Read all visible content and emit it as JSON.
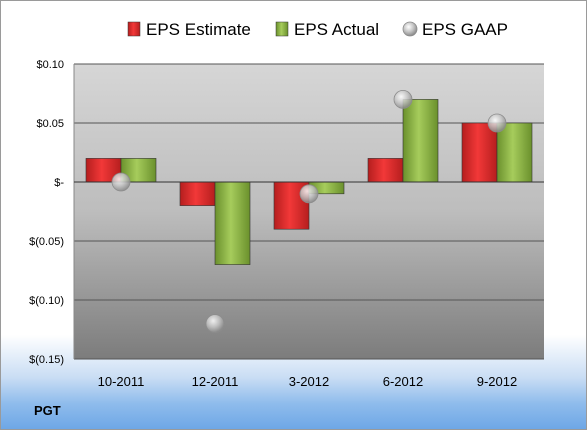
{
  "ticker": "PGT",
  "chart_data": {
    "type": "bar",
    "categories": [
      "10-2011",
      "12-2011",
      "3-2012",
      "6-2012",
      "9-2012"
    ],
    "series": [
      {
        "name": "EPS Estimate",
        "kind": "bar",
        "color": "#cc2222",
        "values": [
          0.02,
          -0.02,
          -0.04,
          0.02,
          0.05
        ]
      },
      {
        "name": "EPS Actual",
        "kind": "bar",
        "color": "#7ea63a",
        "values": [
          0.02,
          -0.07,
          -0.01,
          0.07,
          0.05
        ]
      },
      {
        "name": "EPS GAAP",
        "kind": "marker",
        "color": "#b8b8b8",
        "values": [
          0.0,
          -0.12,
          -0.01,
          0.07,
          0.05
        ]
      }
    ],
    "yticks": [
      0.1,
      0.05,
      0.0,
      -0.05,
      -0.1,
      -0.15
    ],
    "ytick_labels": [
      "$0.10",
      "$0.05",
      "$-",
      "$(0.05)",
      "$(0.10)",
      "$(0.15)"
    ],
    "ylim": [
      -0.15,
      0.1
    ],
    "grid": true,
    "legend_position": "top"
  }
}
